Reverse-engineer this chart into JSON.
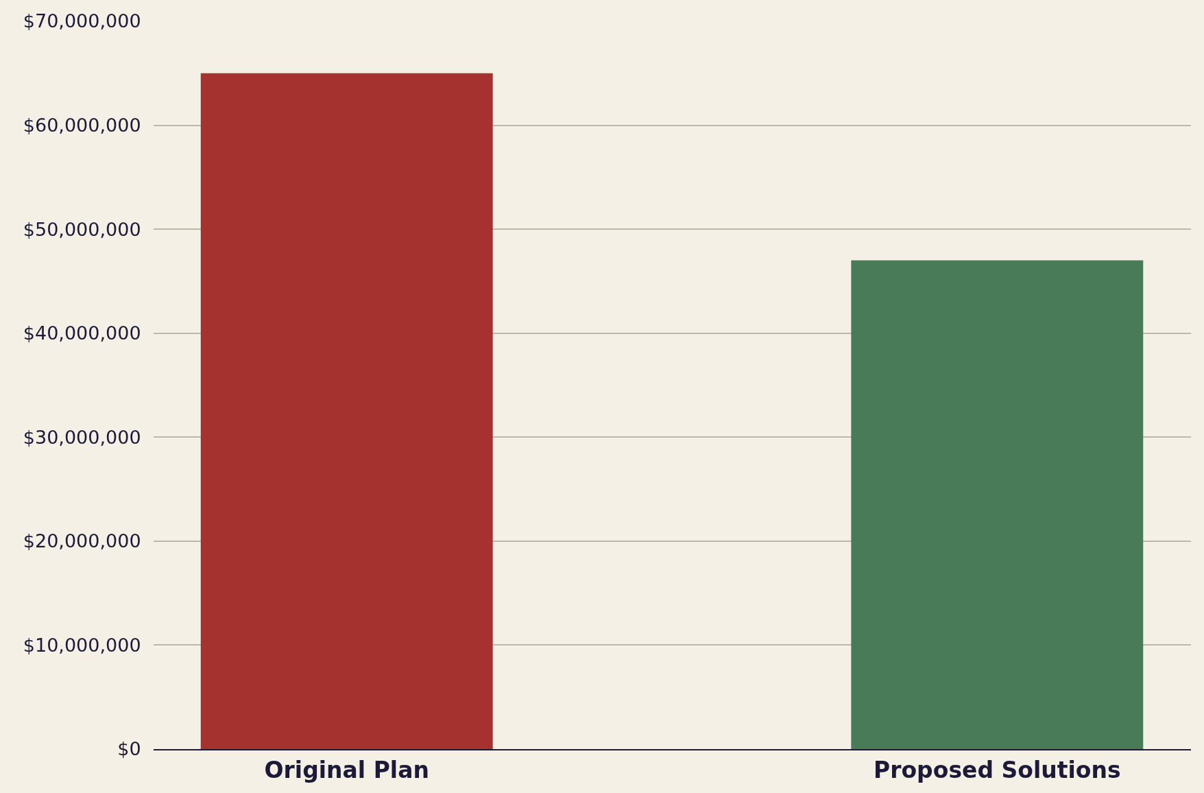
{
  "chart_data": {
    "type": "bar",
    "categories": [
      "Original Plan",
      "Proposed Solutions"
    ],
    "values": [
      65000000,
      47000000
    ],
    "colors": [
      "#a63230",
      "#4a7b58"
    ],
    "ylim": [
      0,
      70000000
    ],
    "yticks": [
      {
        "value": 0,
        "label": "$0"
      },
      {
        "value": 10000000,
        "label": "$10,000,000"
      },
      {
        "value": 20000000,
        "label": "$20,000,000"
      },
      {
        "value": 30000000,
        "label": "$30,000,000"
      },
      {
        "value": 40000000,
        "label": "$40,000,000"
      },
      {
        "value": 50000000,
        "label": "$50,000,000"
      },
      {
        "value": 60000000,
        "label": "$60,000,000"
      },
      {
        "value": 70000000,
        "label": "$70,000,000"
      }
    ],
    "grid": "y"
  }
}
